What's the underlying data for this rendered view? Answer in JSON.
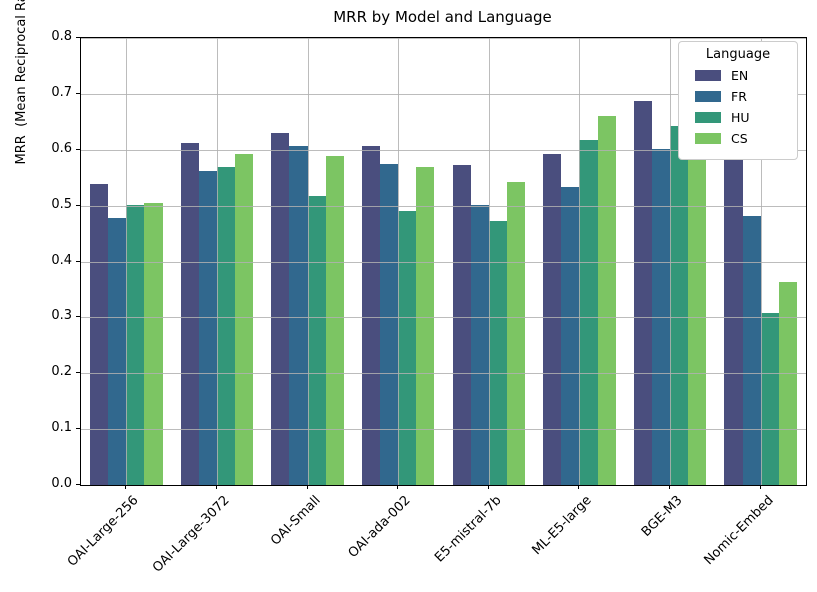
{
  "figure": {
    "title": "MRR by Model and Language",
    "ylabel_display": "MRR  (Mean Reciprocal Rank)"
  },
  "chart_data": {
    "type": "bar",
    "title": "MRR by Model and Language",
    "xlabel": "",
    "ylabel": "MRR (Mean Reciprocal Rank)",
    "categories": [
      "OAI-Large-256",
      "OAI-Large-3072",
      "OAI-Small",
      "OAI-ada-002",
      "E5-mistral-7b",
      "ML-E5-large",
      "BGE-M3",
      "Nomic-Embed"
    ],
    "series": [
      {
        "name": "EN",
        "color": "#4a4e7e",
        "values": [
          0.538,
          0.613,
          0.63,
          0.607,
          0.573,
          0.592,
          0.687,
          0.584
        ]
      },
      {
        "name": "FR",
        "color": "#31688e",
        "values": [
          0.477,
          0.562,
          0.606,
          0.574,
          0.502,
          0.533,
          0.602,
          0.482
        ]
      },
      {
        "name": "HU",
        "color": "#339779",
        "values": [
          0.501,
          0.57,
          0.517,
          0.49,
          0.472,
          0.617,
          0.643,
          0.307
        ]
      },
      {
        "name": "CS",
        "color": "#7cc563",
        "values": [
          0.505,
          0.593,
          0.588,
          0.569,
          0.543,
          0.66,
          0.66,
          0.364
        ]
      }
    ],
    "ylim": [
      0,
      0.8
    ],
    "yticks": [
      0.0,
      0.1,
      0.2,
      0.3,
      0.4,
      0.5,
      0.6,
      0.7,
      0.8
    ],
    "grid": true,
    "x_tick_rotation": 45,
    "legend_title": "Language",
    "legend_position": "upper right"
  },
  "colors": {
    "grid": "#b0b0b0",
    "spine": "#000000",
    "background": "#ffffff"
  }
}
